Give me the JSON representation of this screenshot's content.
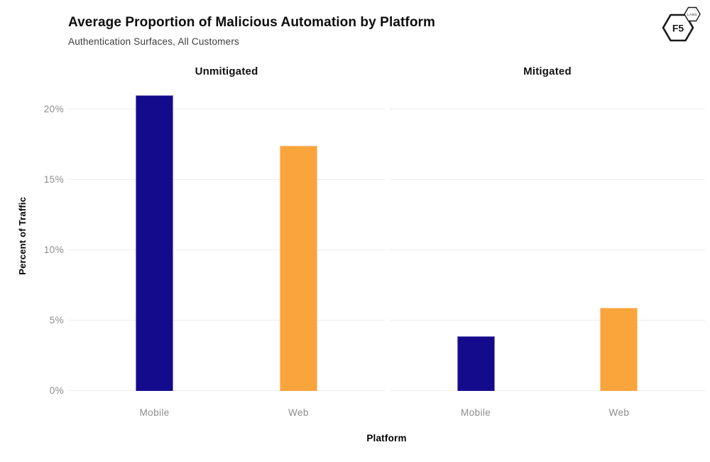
{
  "logo": {
    "alt": "F5 Labs logo",
    "main_text": "F5",
    "badge_text": "LABS"
  },
  "chart_data": {
    "type": "bar",
    "title": "Average Proportion of Malicious Automation by Platform",
    "subtitle": "Authentication Surfaces, All Customers",
    "xlabel": "Platform",
    "ylabel": "Percent of Traffic",
    "ylim": [
      0,
      21.7
    ],
    "yticks": [
      {
        "value": 0,
        "label": "0%"
      },
      {
        "value": 5,
        "label": "5%"
      },
      {
        "value": 10,
        "label": "10%"
      },
      {
        "value": 15,
        "label": "15%"
      },
      {
        "value": 20,
        "label": "20%"
      }
    ],
    "grid": "horizontal-major-only",
    "gridline_color": "#ececec",
    "tick_label_color": "#8c8c8c",
    "legend_position": "none",
    "facets": [
      {
        "label": "Unmitigated",
        "categories": [
          "Mobile",
          "Web"
        ],
        "values": [
          21.0,
          17.4
        ]
      },
      {
        "label": "Mitigated",
        "categories": [
          "Mobile",
          "Web"
        ],
        "values": [
          3.9,
          5.9
        ]
      }
    ],
    "bar_colors": {
      "Mobile": "#140b8c",
      "Web": "#faa43c"
    }
  }
}
